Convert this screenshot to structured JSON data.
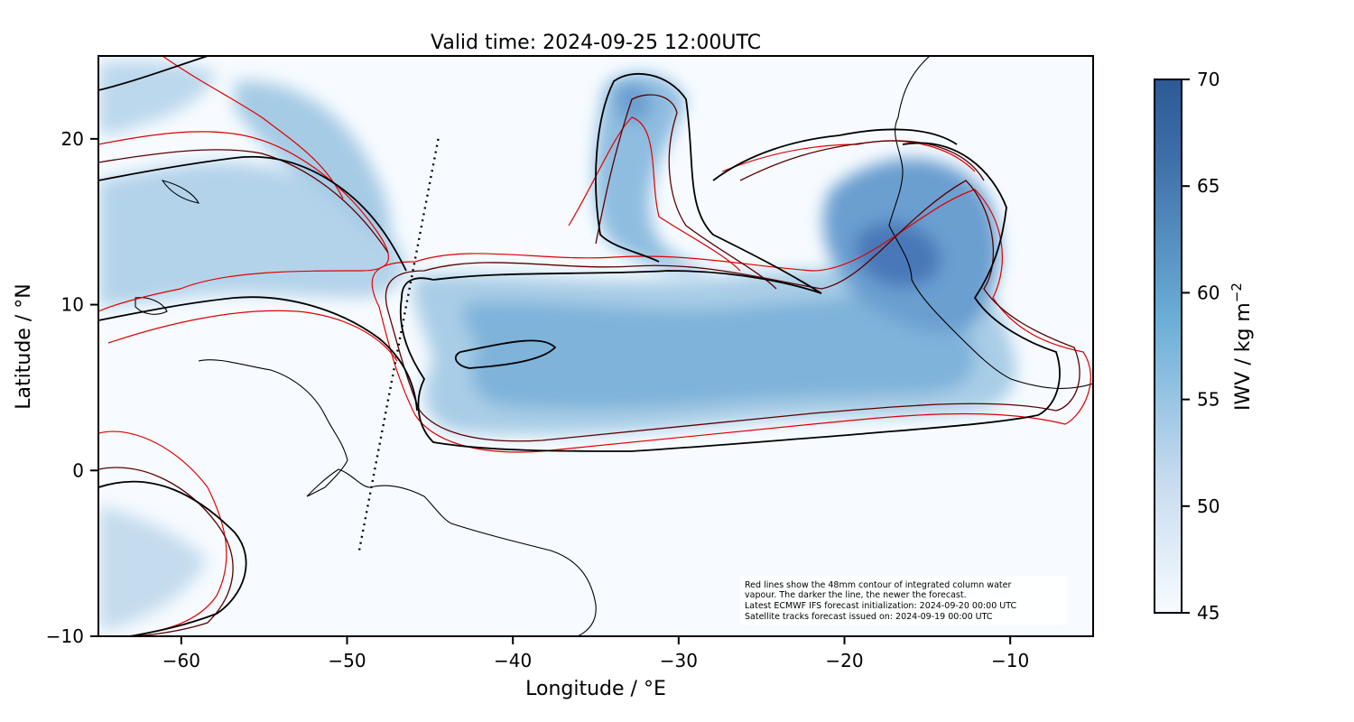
{
  "title": "Valid time: 2024-09-25 12:00UTC",
  "xaxis": {
    "label": "Longitude / °E",
    "ticks": [
      {
        "value": -60,
        "label": "−60"
      },
      {
        "value": -50,
        "label": "−50"
      },
      {
        "value": -40,
        "label": "−40"
      },
      {
        "value": -30,
        "label": "−30"
      },
      {
        "value": -20,
        "label": "−20"
      },
      {
        "value": -10,
        "label": "−10"
      }
    ],
    "range": [
      -65,
      -5
    ]
  },
  "yaxis": {
    "label": "Latitude / °N",
    "ticks": [
      {
        "value": 20,
        "label": "20"
      },
      {
        "value": 10,
        "label": "10"
      },
      {
        "value": 0,
        "label": "0"
      },
      {
        "value": -10,
        "label": "−10"
      }
    ],
    "range": [
      -10,
      25
    ]
  },
  "colorbar": {
    "label_main": "IWV / kg m",
    "label_sup": "−2",
    "range": [
      45,
      70
    ],
    "ticks": [
      {
        "value": 70,
        "label": "70"
      },
      {
        "value": 65,
        "label": "65"
      },
      {
        "value": 60,
        "label": "60"
      },
      {
        "value": 55,
        "label": "55"
      },
      {
        "value": 50,
        "label": "50"
      },
      {
        "value": 45,
        "label": "45"
      }
    ],
    "colors": [
      "#f7fbff",
      "#c6dbef",
      "#6baed6",
      "#3f6fa8",
      "#2b5a96"
    ]
  },
  "annotation": {
    "lines": [
      "Red lines show the 48mm contour of integrated column water",
      "vapour. The darker the line, the newer the forecast.",
      "Latest ECMWF IFS forecast initialization: 2024-09-20 00:00 UTC",
      "Satellite tracks forecast issued on: 2024-09-19 00:00 UTC"
    ]
  },
  "satellite_track": {
    "start": [
      -44.5,
      20
    ],
    "end": [
      -49.3,
      -5
    ]
  },
  "contour_colors": {
    "newest": "#000000",
    "mid": "#5a0000",
    "oldest": "#e00000"
  }
}
